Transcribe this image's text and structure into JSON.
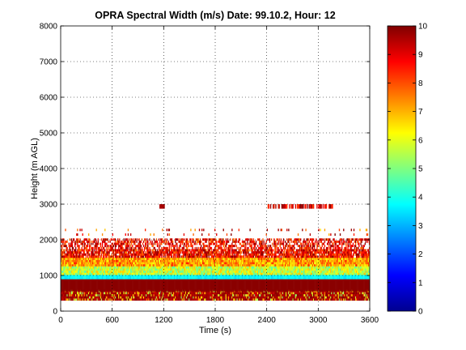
{
  "chart_data": {
    "type": "heatmap",
    "title": "OPRA Spectral Width (m/s)  Date: 99.10.2, Hour: 12",
    "xlabel": "Time (s)",
    "ylabel": "Height (m AGL)",
    "xlim": [
      0,
      3600
    ],
    "ylim": [
      0,
      8000
    ],
    "x_ticks": [
      "0",
      "600",
      "1200",
      "1800",
      "2400",
      "3000",
      "3600"
    ],
    "y_ticks": [
      "0",
      "1000",
      "2000",
      "3000",
      "4000",
      "5000",
      "6000",
      "7000",
      "8000"
    ],
    "grid": true,
    "colormap": "jet",
    "colorbar": {
      "range": [
        0,
        10
      ],
      "ticks": [
        "0",
        "1",
        "2",
        "3",
        "4",
        "5",
        "6",
        "7",
        "8",
        "9",
        "10"
      ],
      "placement": "right"
    },
    "layers": [
      {
        "height_range_m": [
          300,
          560
        ],
        "spectral_width": "8-10 with scattered 5-7",
        "coverage": "continuous 0-3600 s"
      },
      {
        "height_range_m": [
          560,
          900
        ],
        "spectral_width": 10,
        "coverage": "continuous 0-3600 s"
      },
      {
        "height_range_m": [
          900,
          1020
        ],
        "spectral_width": "3-4",
        "coverage": "continuous 0-3600 s"
      },
      {
        "height_range_m": [
          1020,
          1500
        ],
        "spectral_width": "4-8",
        "coverage": "continuous 0-3600 s"
      },
      {
        "height_range_m": [
          1500,
          2000
        ],
        "spectral_width": "8-10",
        "coverage": "patchy 0-3600 s"
      },
      {
        "height_range_m": [
          2250,
          2400
        ],
        "spectral_width": "7-10",
        "coverage": "sparse"
      },
      {
        "height_range_m": [
          2880,
          3000
        ],
        "spectral_width": "8-10",
        "coverage": "sparse, near 1150-1200 s and 2400-3200 s"
      }
    ]
  }
}
